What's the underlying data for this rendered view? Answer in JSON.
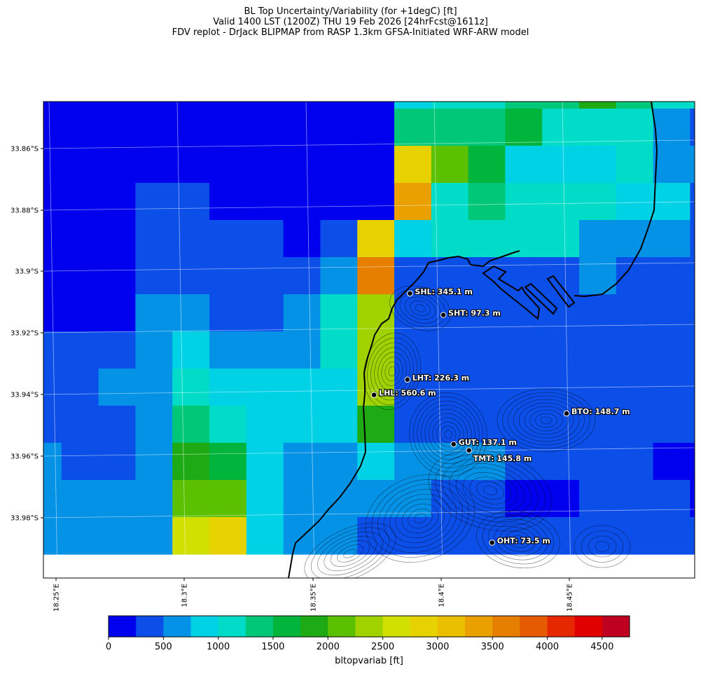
{
  "title": {
    "line1": "BL Top Uncertainty/Variability (for +1degC) [ft]",
    "line2": "Valid 1400 LST (1200Z) THU 19 Feb 2026 [24hrFcst@1611z]",
    "line3": "FDV replot - DrJack BLIPMAP from RASP 1.3km GFSA-Initiated WRF-ARW model"
  },
  "axes": {
    "lat_ticks": [
      "33.86°S",
      "33.88°S",
      "33.9°S",
      "33.92°S",
      "33.94°S",
      "33.96°S",
      "33.98°S"
    ],
    "lon_ticks": [
      "18.25°E",
      "18.3°E",
      "18.35°E",
      "18.4°E",
      "18.45°E"
    ]
  },
  "colorbar": {
    "label": "bltopvariab [ft]",
    "ticks": [
      "0",
      "500",
      "1000",
      "1500",
      "2000",
      "2500",
      "3000",
      "3500",
      "4000",
      "4500"
    ],
    "colors": [
      "#0000ee",
      "#0c4ee8",
      "#0492e6",
      "#00d2e6",
      "#00dcc8",
      "#00c878",
      "#00b43c",
      "#1eaa14",
      "#5ac000",
      "#a0d200",
      "#d2e000",
      "#e6d200",
      "#ebbe00",
      "#e9a000",
      "#e67e00",
      "#e65a00",
      "#e62800",
      "#e00000",
      "#c00020"
    ]
  },
  "grid_colors": [
    [
      0,
      0,
      0,
      0,
      0,
      0,
      0,
      0,
      0,
      0,
      3,
      4,
      4,
      5,
      5,
      7,
      5,
      4,
      4,
      1,
      1
    ],
    [
      0,
      0,
      0,
      0,
      0,
      0,
      0,
      0,
      0,
      0,
      5,
      5,
      5,
      6,
      4,
      4,
      4,
      2,
      1,
      1,
      1
    ],
    [
      0,
      0,
      0,
      0,
      0,
      0,
      0,
      0,
      0,
      0,
      11,
      8,
      6,
      3,
      3,
      3,
      4,
      2,
      2,
      3,
      3
    ],
    [
      0,
      0,
      0,
      1,
      1,
      0,
      0,
      0,
      0,
      0,
      13,
      4,
      5,
      4,
      4,
      4,
      3,
      3,
      1,
      1,
      1
    ],
    [
      0,
      0,
      0,
      1,
      1,
      1,
      1,
      0,
      1,
      11,
      3,
      4,
      4,
      4,
      4,
      2,
      2,
      2,
      1,
      1,
      1
    ],
    [
      0,
      0,
      0,
      1,
      1,
      1,
      1,
      1,
      2,
      14,
      1,
      1,
      1,
      1,
      1,
      2,
      1,
      1,
      1,
      1,
      1
    ],
    [
      0,
      0,
      0,
      2,
      2,
      1,
      1,
      2,
      4,
      9,
      1,
      1,
      1,
      1,
      1,
      1,
      1,
      1,
      1,
      1,
      1
    ],
    [
      1,
      1,
      1,
      2,
      3,
      2,
      2,
      2,
      4,
      9,
      1,
      1,
      1,
      1,
      1,
      1,
      1,
      1,
      1,
      1,
      1
    ],
    [
      1,
      1,
      2,
      2,
      4,
      3,
      3,
      3,
      3,
      9,
      1,
      1,
      1,
      1,
      1,
      1,
      1,
      1,
      1,
      1,
      1
    ],
    [
      1,
      1,
      1,
      2,
      5,
      4,
      3,
      3,
      3,
      7,
      1,
      1,
      1,
      1,
      1,
      1,
      1,
      1,
      1,
      1,
      1
    ],
    [
      2,
      1,
      1,
      2,
      7,
      6,
      3,
      2,
      2,
      3,
      2,
      2,
      2,
      1,
      1,
      1,
      1,
      0,
      0,
      0,
      1
    ],
    [
      2,
      2,
      2,
      2,
      8,
      8,
      3,
      2,
      2,
      2,
      2,
      1,
      1,
      0,
      0,
      1,
      1,
      1,
      0,
      1,
      1
    ],
    [
      2,
      2,
      2,
      2,
      10,
      11,
      3,
      2,
      2,
      1,
      1,
      1,
      1,
      1,
      1,
      1,
      1,
      1,
      1,
      1,
      1
    ]
  ],
  "sites": [
    {
      "label": "SHL: 345.1 m",
      "lon": 18.389,
      "lat": -33.908
    },
    {
      "label": "SHT: 97.3 m",
      "lon": 18.402,
      "lat": -33.915
    },
    {
      "label": "LHT: 226.3 m",
      "lon": 18.388,
      "lat": -33.936
    },
    {
      "label": "LHL: 560.6 m",
      "lon": 18.375,
      "lat": -33.941
    },
    {
      "label": "BTO: 148.7 m",
      "lon": 18.45,
      "lat": -33.947
    },
    {
      "label": "GUT: 137.1 m",
      "lon": 18.406,
      "lat": -33.957
    },
    {
      "label": "TMT: 145.8 m",
      "lon": 18.412,
      "lat": -33.959
    },
    {
      "label": "OHT: 73.5 m",
      "lon": 18.421,
      "lat": -33.989
    }
  ]
}
